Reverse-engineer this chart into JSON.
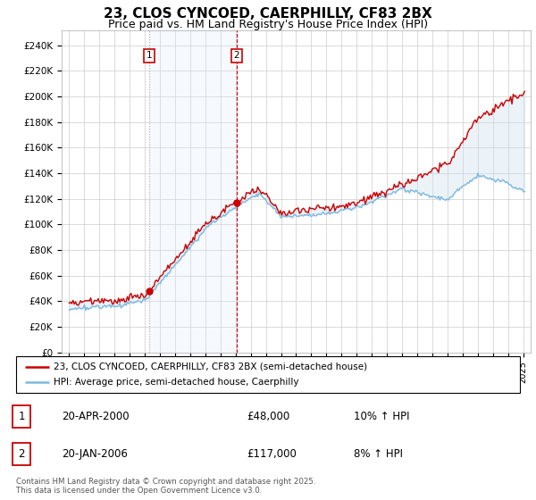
{
  "title": "23, CLOS CYNCOED, CAERPHILLY, CF83 2BX",
  "subtitle": "Price paid vs. HM Land Registry's House Price Index (HPI)",
  "title_fontsize": 11,
  "subtitle_fontsize": 9,
  "ylabel_ticks": [
    "£0",
    "£20K",
    "£40K",
    "£60K",
    "£80K",
    "£100K",
    "£120K",
    "£140K",
    "£160K",
    "£180K",
    "£200K",
    "£220K",
    "£240K"
  ],
  "ylim": [
    0,
    252000
  ],
  "xlim_start": 1994.5,
  "xlim_end": 2025.5,
  "hpi_color": "#7db9e0",
  "hpi_fill_color": "#c8dff0",
  "price_color": "#cc0000",
  "shade_color": "#ddeeff",
  "sale1_x": 2000.28,
  "sale1_label": "1",
  "sale1_y": 48000,
  "sale2_x": 2006.05,
  "sale2_label": "2",
  "sale2_y": 117000,
  "legend_line1": "23, CLOS CYNCOED, CAERPHILLY, CF83 2BX (semi-detached house)",
  "legend_line2": "HPI: Average price, semi-detached house, Caerphilly",
  "table_row1_num": "1",
  "table_row1_date": "20-APR-2000",
  "table_row1_price": "£48,000",
  "table_row1_hpi": "10% ↑ HPI",
  "table_row2_num": "2",
  "table_row2_date": "20-JAN-2006",
  "table_row2_price": "£117,000",
  "table_row2_hpi": "8% ↑ HPI",
  "footer": "Contains HM Land Registry data © Crown copyright and database right 2025.\nThis data is licensed under the Open Government Licence v3.0.",
  "background_color": "#ffffff",
  "grid_color": "#cccccc"
}
